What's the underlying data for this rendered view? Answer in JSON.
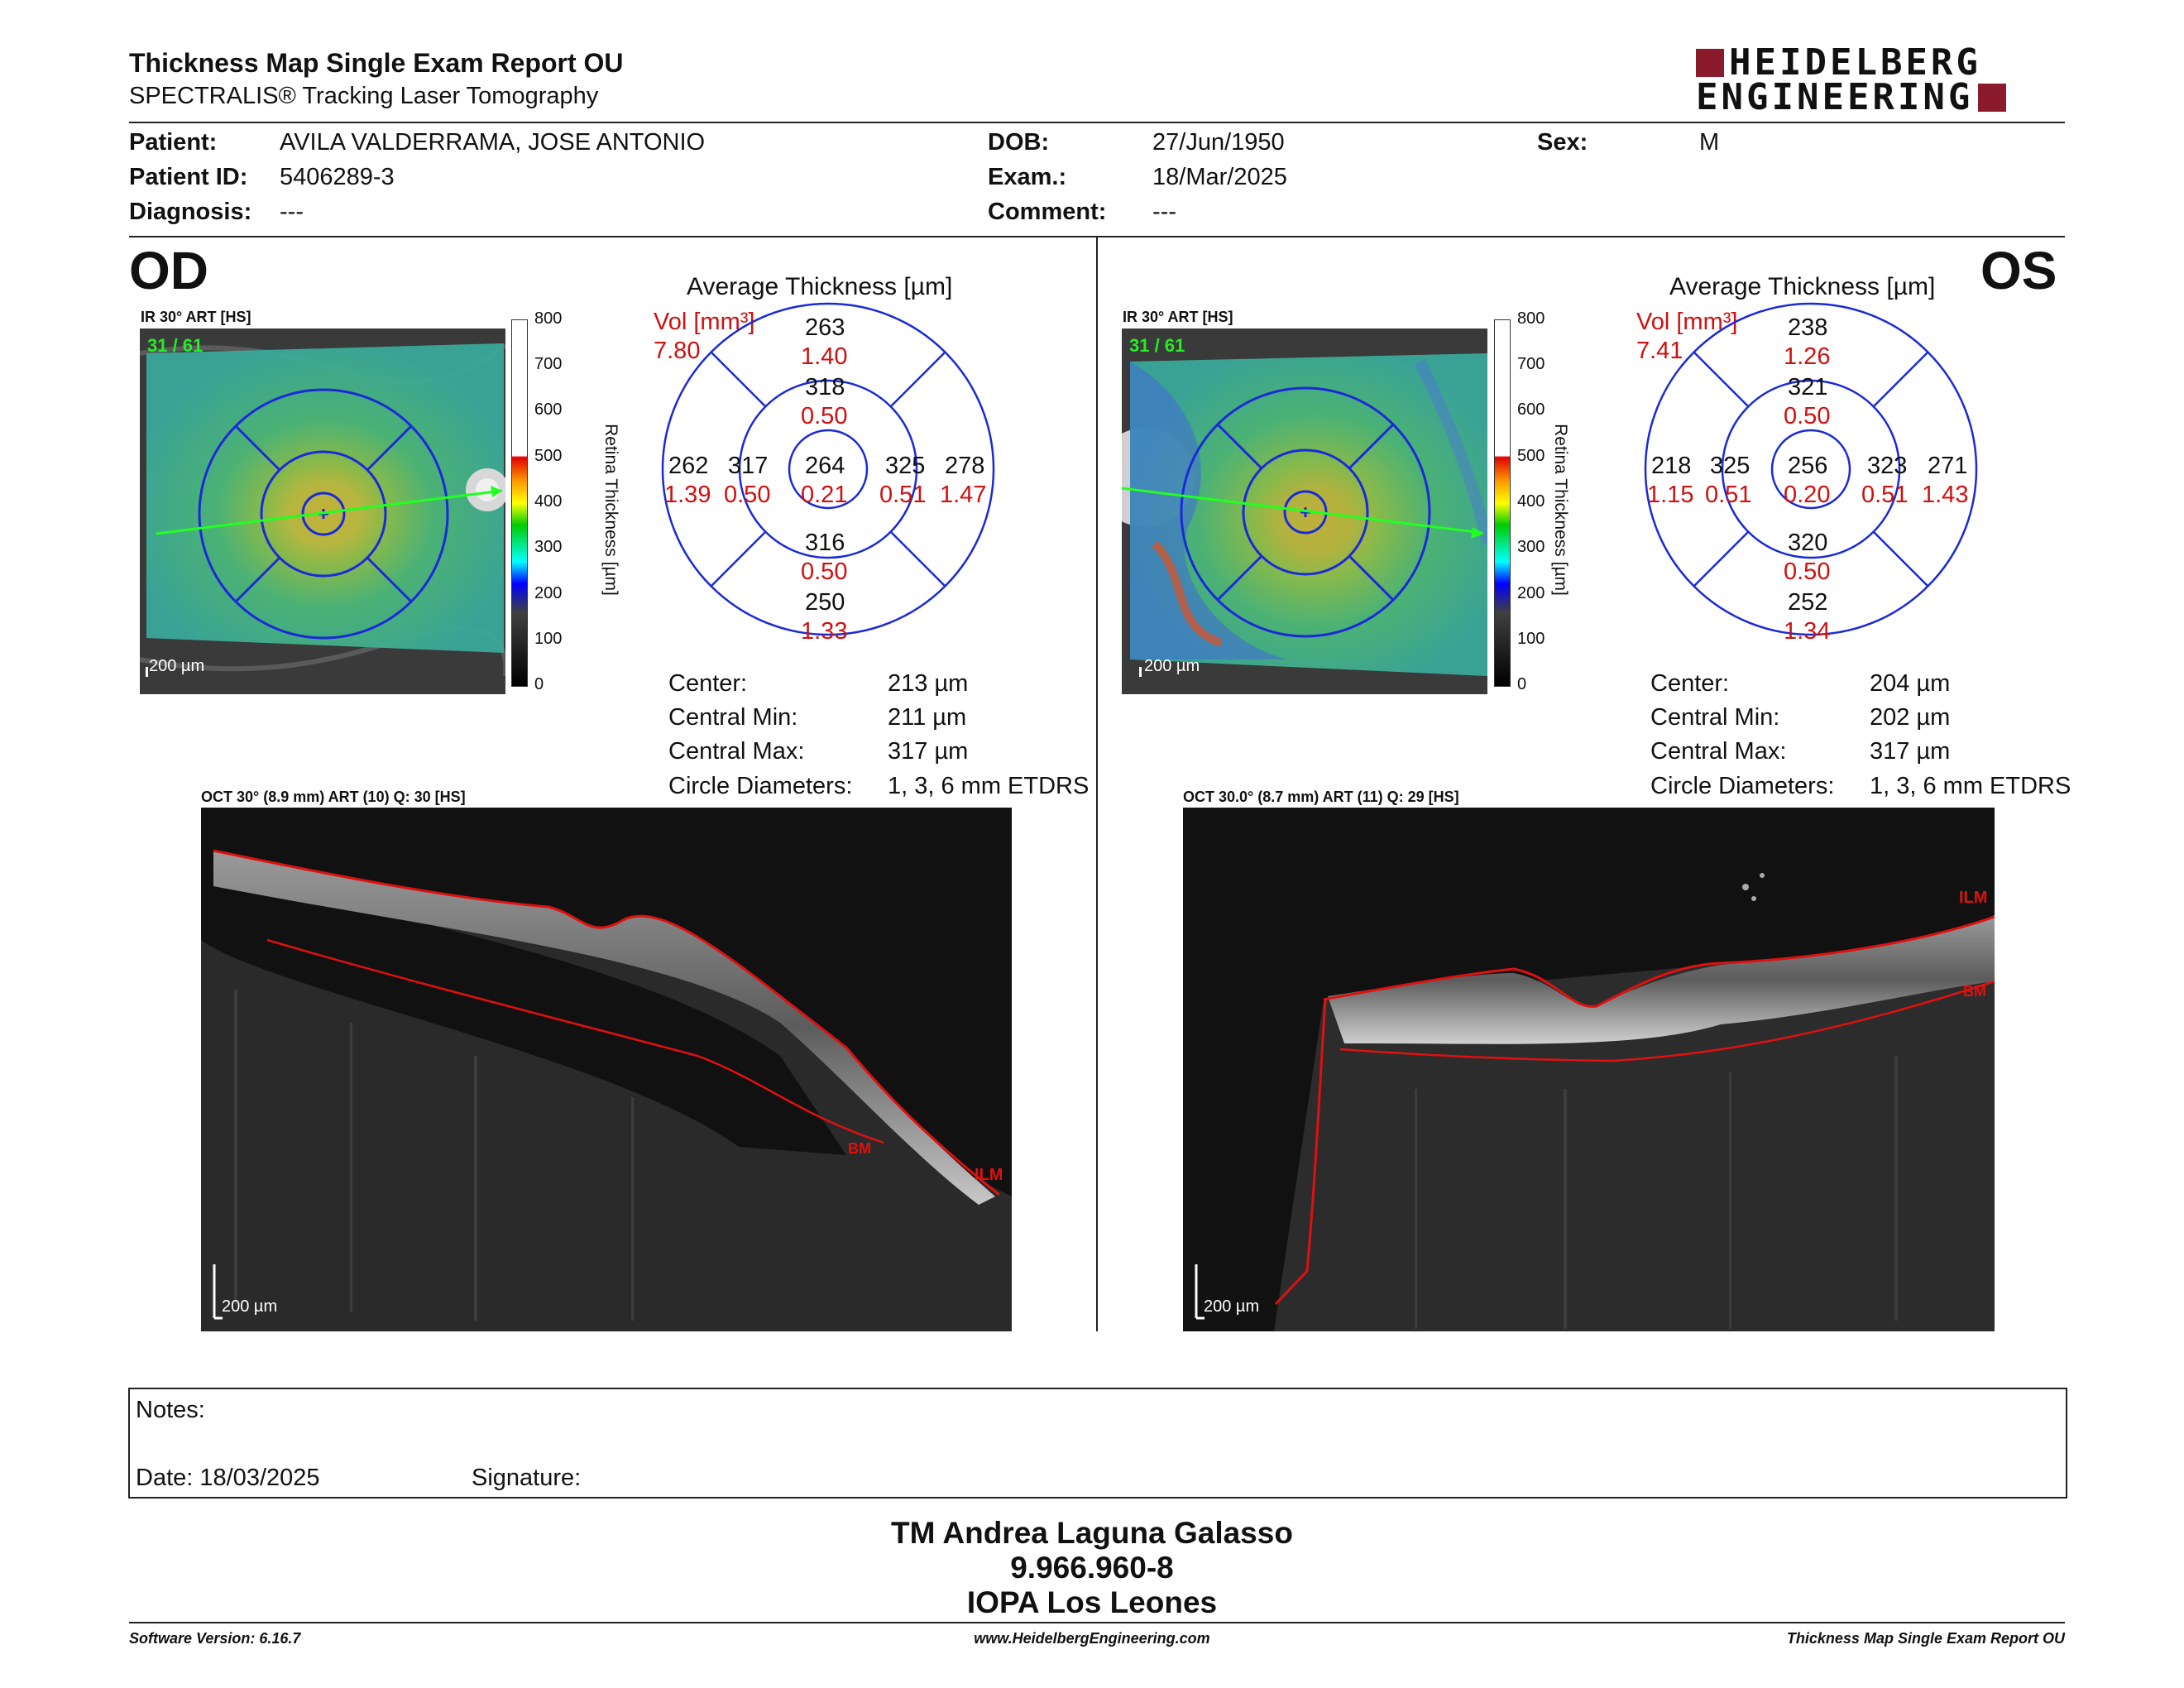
{
  "header": {
    "title": "Thickness Map Single Exam Report OU",
    "subtitle": "SPECTRALIS® Tracking Laser Tomography",
    "logo_line1": "HEIDELBERG",
    "logo_line2": "ENGINEERING"
  },
  "patient": {
    "patient_label": "Patient:",
    "patient_value": "AVILA VALDERRAMA, JOSE ANTONIO",
    "patient_id_label": "Patient ID:",
    "patient_id_value": "5406289-3",
    "diagnosis_label": "Diagnosis:",
    "diagnosis_value": "---",
    "dob_label": "DOB:",
    "dob_value": "27/Jun/1950",
    "exam_label": "Exam.:",
    "exam_value": "18/Mar/2025",
    "comment_label": "Comment:",
    "comment_value": "---",
    "sex_label": "Sex:",
    "sex_value": "M"
  },
  "colorbar": {
    "ticks": [
      "800",
      "700",
      "600",
      "500",
      "400",
      "300",
      "200",
      "100",
      "0"
    ],
    "label": "Retina  Thickness [µm]"
  },
  "od": {
    "eye": "OD",
    "ir_label": "IR 30° ART [HS]",
    "frames": "31 / 61",
    "scale": "200 µm",
    "avg_title": "Average Thickness [µm]",
    "vol_label": "Vol [mm³]",
    "vol_value": "7.80",
    "grid": {
      "sup_outer": {
        "t": "263",
        "v": "1.40"
      },
      "sup_inner": {
        "t": "318",
        "v": "0.50"
      },
      "temp_outer": {
        "t": "262",
        "v": "1.39"
      },
      "temp_inner": {
        "t": "317",
        "v": "0.50"
      },
      "center": {
        "t": "264",
        "v": "0.21"
      },
      "nas_inner": {
        "t": "325",
        "v": "0.51"
      },
      "nas_outer": {
        "t": "278",
        "v": "1.47"
      },
      "inf_inner": {
        "t": "316",
        "v": "0.50"
      },
      "inf_outer": {
        "t": "250",
        "v": "1.33"
      }
    },
    "stats": {
      "center_label": "Center:",
      "center_value": "213 µm",
      "min_label": "Central Min:",
      "min_value": "211 µm",
      "max_label": "Central Max:",
      "max_value": "317 µm",
      "circ_label": "Circle Diameters:",
      "circ_value": "1, 3, 6 mm ETDRS"
    },
    "oct_label": "OCT 30° (8.9 mm) ART (10) Q: 30 [HS]",
    "oct_scale": "200 µm",
    "ilm": "ILM",
    "bm": "BM"
  },
  "os": {
    "eye": "OS",
    "ir_label": "IR 30° ART [HS]",
    "frames": "31 / 61",
    "scale": "200 µm",
    "avg_title": "Average Thickness [µm]",
    "vol_label": "Vol [mm³]",
    "vol_value": "7.41",
    "grid": {
      "sup_outer": {
        "t": "238",
        "v": "1.26"
      },
      "sup_inner": {
        "t": "321",
        "v": "0.50"
      },
      "temp_outer": {
        "t": "218",
        "v": "1.15"
      },
      "temp_inner": {
        "t": "325",
        "v": "0.51"
      },
      "center": {
        "t": "256",
        "v": "0.20"
      },
      "nas_inner": {
        "t": "323",
        "v": "0.51"
      },
      "nas_outer": {
        "t": "271",
        "v": "1.43"
      },
      "inf_inner": {
        "t": "320",
        "v": "0.50"
      },
      "inf_outer": {
        "t": "252",
        "v": "1.34"
      }
    },
    "stats": {
      "center_label": "Center:",
      "center_value": "204 µm",
      "min_label": "Central Min:",
      "min_value": "202 µm",
      "max_label": "Central Max:",
      "max_value": "317 µm",
      "circ_label": "Circle Diameters:",
      "circ_value": "1, 3, 6 mm ETDRS"
    },
    "oct_label": "OCT 30.0° (8.7 mm) ART (11) Q: 29 [HS]",
    "oct_scale": "200 µm",
    "ilm": "ILM",
    "bm": "BM"
  },
  "notes": {
    "notes_label": "Notes:",
    "date_label": "Date: 18/03/2025",
    "signature_label": "Signature:"
  },
  "signature": {
    "name": "TM Andrea Laguna Galasso",
    "id": "9.966.960-8",
    "org": "IOPA Los Leones"
  },
  "footer": {
    "version": "Software Version: 6.16.7",
    "url": "www.HeidelbergEngineering.com",
    "report": "Thickness Map Single Exam Report OU"
  }
}
